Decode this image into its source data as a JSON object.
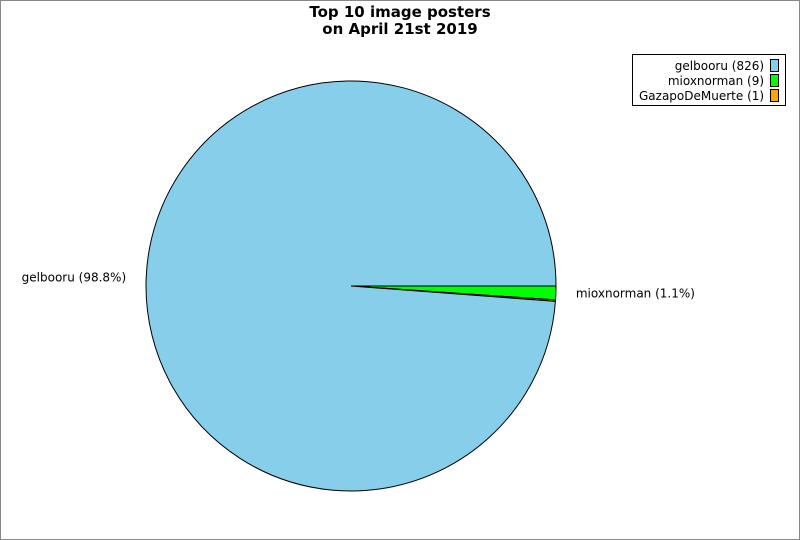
{
  "chart_data": {
    "type": "pie",
    "title": [
      "Top 10 image posters",
      "on April 21st 2019"
    ],
    "slices": [
      {
        "name": "gelbooru",
        "value": 826,
        "legend": "gelbooru (826)",
        "label": "gelbooru (98.8%)",
        "color": "#87ceeb"
      },
      {
        "name": "mioxnorman",
        "value": 9,
        "legend": "mioxnorman (9)",
        "label": "mioxnorman (1.1%)",
        "color": "#00ff00"
      },
      {
        "name": "GazapoDeMuerte",
        "value": 1,
        "legend": "GazapoDeMuerte (1)",
        "label": "",
        "color": "#ffa500"
      }
    ],
    "legend_placement": "top-right"
  }
}
